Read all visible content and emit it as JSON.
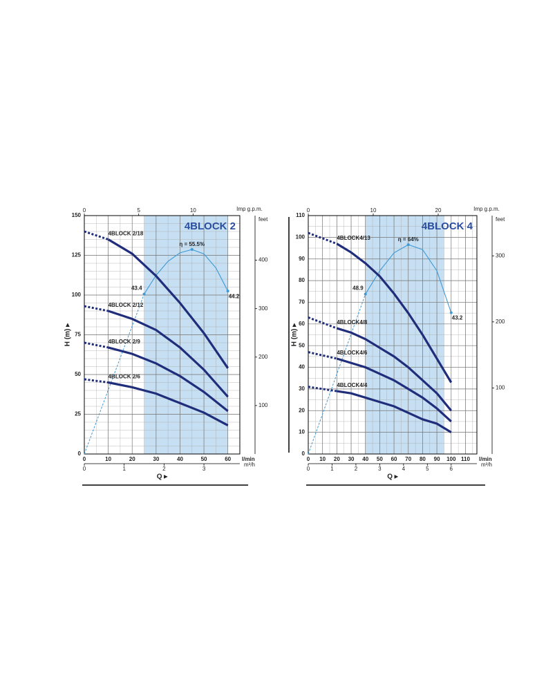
{
  "chart_data": [
    {
      "type": "line",
      "title": "4BLOCK 2",
      "ylabel": "H (m) ▸",
      "xlabel": "Q ▸",
      "x_unit": "l/min",
      "xlim": [
        0,
        65
      ],
      "xticks": [
        0,
        10,
        20,
        30,
        40,
        50,
        60
      ],
      "ylim": [
        0,
        150
      ],
      "yticks": [
        0,
        25,
        50,
        75,
        100,
        125,
        150
      ],
      "grid_step": [
        5,
        5
      ],
      "highlight": [
        25,
        60
      ],
      "highlight_color": "#c6dff2",
      "y2label": "feet",
      "y2lim": [
        0,
        492.1
      ],
      "y2ticks": [
        100,
        200,
        300,
        400
      ],
      "top_axis": {
        "label": "Imp g.p.m.",
        "lim": [
          0,
          14.3
        ],
        "ticks": [
          0,
          5,
          10
        ]
      },
      "bottom_axis": {
        "label": "m³/h",
        "lim": [
          0,
          3.9
        ],
        "ticks": [
          0,
          1,
          2,
          3
        ]
      },
      "series": [
        {
          "name": "4BLOCK 2/18",
          "color": "#1f2d7b",
          "x": [
            10,
            20,
            30,
            40,
            50,
            60
          ],
          "values": [
            135,
            126,
            112,
            95,
            76,
            54
          ],
          "extrapolated": {
            "x": [
              0,
              10
            ],
            "values": [
              140,
              135
            ]
          }
        },
        {
          "name": "4BLOCK 2/12",
          "color": "#1f2d7b",
          "x": [
            10,
            20,
            30,
            40,
            50,
            60
          ],
          "values": [
            90,
            85,
            78,
            67,
            53,
            36
          ],
          "extrapolated": {
            "x": [
              0,
              10
            ],
            "values": [
              93,
              90
            ]
          }
        },
        {
          "name": "4BLOCK 2/9",
          "color": "#1f2d7b",
          "x": [
            10,
            20,
            30,
            40,
            50,
            60
          ],
          "values": [
            67,
            63,
            57,
            49,
            39,
            27
          ],
          "extrapolated": {
            "x": [
              0,
              10
            ],
            "values": [
              70,
              67
            ]
          }
        },
        {
          "name": "4BLOCK 2/6",
          "color": "#1f2d7b",
          "x": [
            10,
            20,
            30,
            40,
            50,
            60
          ],
          "values": [
            45,
            42,
            38,
            32,
            26,
            18
          ],
          "extrapolated": {
            "x": [
              0,
              10
            ],
            "values": [
              47,
              45
            ]
          }
        }
      ],
      "efficiency": {
        "color": "#3d9ad6",
        "lim": [
          0,
          64.7
        ],
        "x": [
          25,
          30,
          35,
          40,
          45,
          50,
          55,
          60
        ],
        "values": [
          43.4,
          48.5,
          52.3,
          54.6,
          55.5,
          54.3,
          50.5,
          44.2
        ],
        "value_labels": [
          "43.4",
          null,
          null,
          null,
          "η = 55.5%",
          null,
          null,
          "44.2"
        ],
        "extrapolated": {
          "x": [
            0,
            25
          ],
          "values": [
            0,
            43.4
          ]
        }
      }
    },
    {
      "type": "line",
      "title": "4BLOCK 4",
      "ylabel": "H (m) ▸",
      "xlabel": "Q ▸",
      "x_unit": "l/min",
      "xlim": [
        0,
        118
      ],
      "xticks": [
        0,
        10,
        20,
        30,
        40,
        50,
        60,
        70,
        80,
        90,
        100,
        110
      ],
      "ylim": [
        0,
        110
      ],
      "yticks": [
        0,
        10,
        20,
        30,
        40,
        50,
        60,
        70,
        80,
        90,
        100,
        110
      ],
      "grid_step": [
        5,
        5
      ],
      "highlight": [
        40,
        95
      ],
      "highlight_color": "#c6dff2",
      "y2label": "feet",
      "y2lim": [
        0,
        360.9
      ],
      "y2ticks": [
        100,
        200,
        300
      ],
      "top_axis": {
        "label": "Imp g.p.m.",
        "lim": [
          0,
          25.96
        ],
        "ticks": [
          0,
          10,
          20
        ]
      },
      "bottom_axis": {
        "label": "m³/h",
        "lim": [
          0,
          7.08
        ],
        "ticks": [
          0,
          1,
          2,
          3,
          4,
          5,
          6
        ]
      },
      "series": [
        {
          "name": "4BLOCK4/13",
          "color": "#1f2d7b",
          "x": [
            20,
            30,
            40,
            50,
            60,
            70,
            80,
            90,
            100
          ],
          "values": [
            97,
            93,
            88,
            82,
            74,
            65,
            55,
            44,
            33
          ],
          "extrapolated": {
            "x": [
              0,
              20
            ],
            "values": [
              102,
              97
            ]
          }
        },
        {
          "name": "4BLOCK4/8",
          "color": "#1f2d7b",
          "x": [
            20,
            30,
            40,
            50,
            60,
            70,
            80,
            90,
            100
          ],
          "values": [
            58,
            56,
            53,
            49,
            45,
            40,
            34,
            28,
            20
          ],
          "extrapolated": {
            "x": [
              0,
              20
            ],
            "values": [
              63,
              58
            ]
          }
        },
        {
          "name": "4BLOCK4/6",
          "color": "#1f2d7b",
          "x": [
            20,
            30,
            40,
            50,
            60,
            70,
            80,
            90,
            100
          ],
          "values": [
            44,
            42,
            40,
            37,
            34,
            30,
            26,
            21,
            15
          ],
          "extrapolated": {
            "x": [
              0,
              20
            ],
            "values": [
              47,
              44
            ]
          }
        },
        {
          "name": "4BLOCK4/4",
          "color": "#1f2d7b",
          "x": [
            20,
            30,
            40,
            50,
            60,
            70,
            80,
            90,
            100
          ],
          "values": [
            29,
            28,
            26,
            24,
            22,
            19,
            16,
            14,
            10
          ],
          "extrapolated": {
            "x": [
              0,
              20
            ],
            "values": [
              31,
              29
            ]
          }
        }
      ],
      "efficiency": {
        "color": "#3d9ad6",
        "lim": [
          0,
          72.9
        ],
        "x": [
          40,
          50,
          60,
          70,
          80,
          90,
          100
        ],
        "values": [
          48.9,
          56,
          61.5,
          64,
          62.5,
          56,
          43.2
        ],
        "value_labels": [
          "48.9",
          null,
          null,
          "η = 64%",
          null,
          null,
          "43.2"
        ],
        "extrapolated": {
          "x": [
            0,
            40
          ],
          "values": [
            0,
            48.9
          ]
        }
      }
    }
  ]
}
